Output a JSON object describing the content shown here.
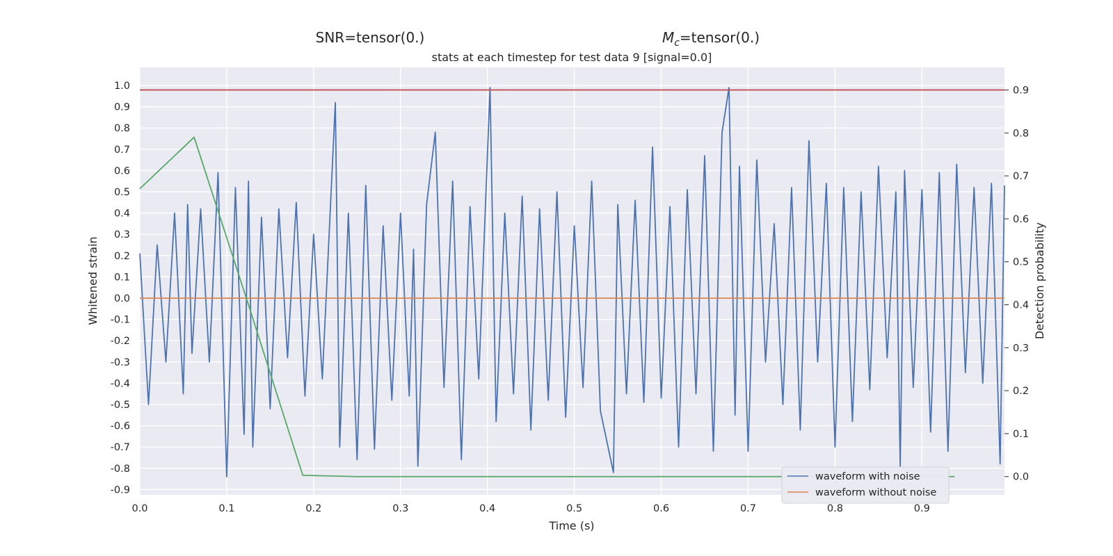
{
  "header": {
    "snr_title": "SNR=tensor(0.)",
    "mc_symbol": "M",
    "mc_subscript": "c",
    "mc_value": "=tensor(0.)",
    "subtitle": "stats at each timestep for test data 9 [signal=0.0]"
  },
  "chart_data": {
    "type": "line",
    "title": "stats at each timestep for test data 9 [signal=0.0]",
    "xlabel": "Time (s)",
    "ylabel": "Whitened strain",
    "y2label": "Detection probability",
    "xlim": [
      0.0,
      0.995
    ],
    "ylim": [
      -0.925,
      1.085
    ],
    "y2lim": [
      -0.0425,
      0.9525
    ],
    "x_ticks": [
      "0.0",
      "0.1",
      "0.2",
      "0.3",
      "0.4",
      "0.5",
      "0.6",
      "0.7",
      "0.8",
      "0.9"
    ],
    "y_ticks": [
      "1.0",
      "0.9",
      "0.8",
      "0.7",
      "0.6",
      "0.5",
      "0.4",
      "0.3",
      "0.2",
      "0.1",
      "0.0",
      "-0.1",
      "-0.2",
      "-0.3",
      "-0.4",
      "-0.5",
      "-0.6",
      "-0.7",
      "-0.8",
      "-0.9"
    ],
    "y2_ticks": [
      "0.9",
      "0.8",
      "0.7",
      "0.6",
      "0.5",
      "0.4",
      "0.3",
      "0.2",
      "0.1",
      "0.0"
    ],
    "grid": true,
    "legend_position": "lower-right",
    "series": [
      {
        "name": "waveform with noise",
        "color": "#4c72b0",
        "axis": "left",
        "points": [
          [
            0.0,
            0.21
          ],
          [
            0.01,
            -0.5
          ],
          [
            0.02,
            0.25
          ],
          [
            0.03,
            -0.3
          ],
          [
            0.04,
            0.4
          ],
          [
            0.05,
            -0.45
          ],
          [
            0.055,
            0.44
          ],
          [
            0.06,
            -0.26
          ],
          [
            0.07,
            0.42
          ],
          [
            0.08,
            -0.3
          ],
          [
            0.09,
            0.59
          ],
          [
            0.1,
            -0.84
          ],
          [
            0.11,
            0.52
          ],
          [
            0.12,
            -0.64
          ],
          [
            0.125,
            0.55
          ],
          [
            0.13,
            -0.7
          ],
          [
            0.14,
            0.38
          ],
          [
            0.15,
            -0.52
          ],
          [
            0.16,
            0.42
          ],
          [
            0.17,
            -0.28
          ],
          [
            0.18,
            0.45
          ],
          [
            0.19,
            -0.46
          ],
          [
            0.2,
            0.3
          ],
          [
            0.21,
            -0.38
          ],
          [
            0.225,
            0.92
          ],
          [
            0.23,
            -0.7
          ],
          [
            0.24,
            0.4
          ],
          [
            0.25,
            -0.76
          ],
          [
            0.26,
            0.53
          ],
          [
            0.27,
            -0.71
          ],
          [
            0.28,
            0.34
          ],
          [
            0.29,
            -0.48
          ],
          [
            0.3,
            0.4
          ],
          [
            0.31,
            -0.46
          ],
          [
            0.315,
            0.23
          ],
          [
            0.32,
            -0.79
          ],
          [
            0.33,
            0.44
          ],
          [
            0.34,
            0.78
          ],
          [
            0.35,
            -0.42
          ],
          [
            0.36,
            0.55
          ],
          [
            0.37,
            -0.76
          ],
          [
            0.38,
            0.43
          ],
          [
            0.39,
            -0.38
          ],
          [
            0.403,
            0.99
          ],
          [
            0.41,
            -0.58
          ],
          [
            0.42,
            0.4
          ],
          [
            0.43,
            -0.45
          ],
          [
            0.44,
            0.48
          ],
          [
            0.45,
            -0.62
          ],
          [
            0.46,
            0.42
          ],
          [
            0.47,
            -0.48
          ],
          [
            0.48,
            0.5
          ],
          [
            0.49,
            -0.56
          ],
          [
            0.5,
            0.34
          ],
          [
            0.51,
            -0.42
          ],
          [
            0.52,
            0.55
          ],
          [
            0.53,
            -0.53
          ],
          [
            0.545,
            -0.82
          ],
          [
            0.55,
            0.44
          ],
          [
            0.56,
            -0.45
          ],
          [
            0.57,
            0.46
          ],
          [
            0.58,
            -0.49
          ],
          [
            0.59,
            0.71
          ],
          [
            0.6,
            -0.47
          ],
          [
            0.61,
            0.43
          ],
          [
            0.62,
            -0.7
          ],
          [
            0.63,
            0.51
          ],
          [
            0.64,
            -0.45
          ],
          [
            0.65,
            0.67
          ],
          [
            0.66,
            -0.72
          ],
          [
            0.67,
            0.78
          ],
          [
            0.678,
            0.99
          ],
          [
            0.685,
            -0.55
          ],
          [
            0.69,
            0.62
          ],
          [
            0.7,
            -0.72
          ],
          [
            0.71,
            0.65
          ],
          [
            0.72,
            -0.3
          ],
          [
            0.73,
            0.35
          ],
          [
            0.74,
            -0.5
          ],
          [
            0.75,
            0.52
          ],
          [
            0.76,
            -0.62
          ],
          [
            0.77,
            0.74
          ],
          [
            0.78,
            -0.3
          ],
          [
            0.79,
            0.54
          ],
          [
            0.8,
            -0.7
          ],
          [
            0.81,
            0.52
          ],
          [
            0.82,
            -0.58
          ],
          [
            0.83,
            0.5
          ],
          [
            0.84,
            -0.43
          ],
          [
            0.85,
            0.62
          ],
          [
            0.86,
            -0.28
          ],
          [
            0.87,
            0.5
          ],
          [
            0.875,
            -0.79
          ],
          [
            0.88,
            0.6
          ],
          [
            0.89,
            -0.42
          ],
          [
            0.9,
            0.51
          ],
          [
            0.91,
            -0.63
          ],
          [
            0.92,
            0.59
          ],
          [
            0.93,
            -0.72
          ],
          [
            0.94,
            0.63
          ],
          [
            0.95,
            -0.35
          ],
          [
            0.96,
            0.52
          ],
          [
            0.97,
            -0.4
          ],
          [
            0.98,
            0.54
          ],
          [
            0.99,
            -0.78
          ],
          [
            0.995,
            0.53
          ]
        ]
      },
      {
        "name": "waveform without noise",
        "color": "#dd8452",
        "axis": "left",
        "points": [
          [
            0.0,
            0.0
          ],
          [
            0.995,
            0.0
          ]
        ]
      },
      {
        "color": "#55a868",
        "axis": "right",
        "points": [
          [
            0.0,
            0.67
          ],
          [
            0.0625,
            0.79
          ],
          [
            0.125,
            0.4
          ],
          [
            0.1875,
            0.003
          ],
          [
            0.25,
            0.0
          ],
          [
            0.9375,
            0.0
          ]
        ]
      },
      {
        "color": "#c44e52",
        "axis": "right",
        "points": [
          [
            0.0,
            0.9
          ],
          [
            0.995,
            0.9
          ]
        ]
      }
    ]
  }
}
